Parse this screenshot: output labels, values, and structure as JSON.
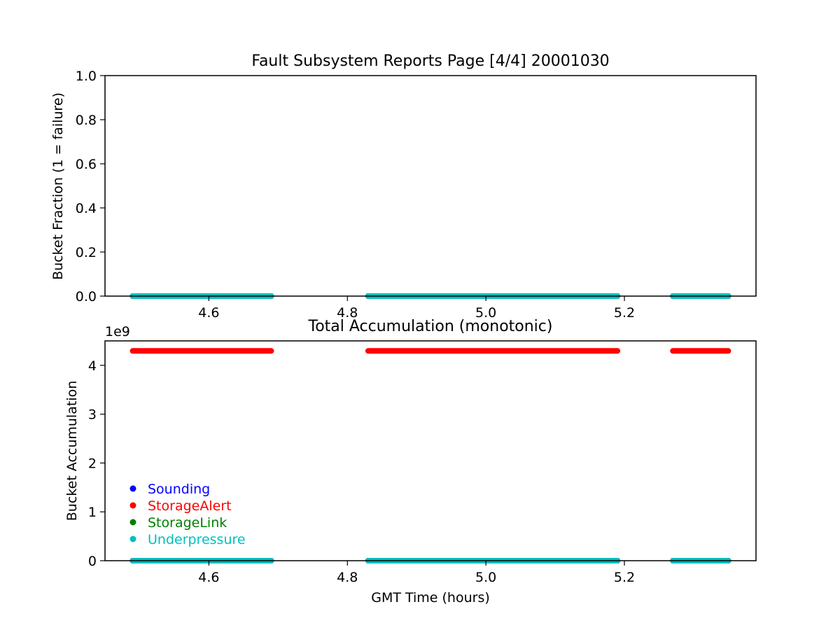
{
  "chart_data": [
    {
      "type": "scatter",
      "title": "Fault Subsystem Reports Page [4/4] 20001030",
      "xlabel": "",
      "ylabel": "Bucket Fraction (1 = failure)",
      "xlim": [
        4.45,
        5.39
      ],
      "ylim": [
        0,
        1
      ],
      "xticks": [
        4.6,
        4.8,
        5.0,
        5.2
      ],
      "xtick_labels": [
        "4.6",
        "4.8",
        "5.0",
        "5.2"
      ],
      "yticks": [
        0,
        0.2,
        0.4,
        0.6,
        0.8,
        1.0
      ],
      "ytick_labels": [
        "0.0",
        "0.2",
        "0.4",
        "0.6",
        "0.8",
        "1.0"
      ],
      "grid": false,
      "segments": [
        [
          4.49,
          4.69
        ],
        [
          4.83,
          5.19
        ],
        [
          5.27,
          5.35
        ]
      ],
      "series": [
        {
          "name": "Sounding",
          "color": "#0000ff",
          "value": 0
        },
        {
          "name": "StorageAlert",
          "color": "#ff0000",
          "value": 0
        },
        {
          "name": "StorageLink",
          "color": "#008000",
          "value": 0
        },
        {
          "name": "Underpressure",
          "color": "#00bfbf",
          "value": 0
        }
      ]
    },
    {
      "type": "scatter",
      "title": "Total Accumulation (monotonic)",
      "xlabel": "GMT Time (hours)",
      "ylabel": "Bucket Accumulation",
      "offset_text": "1e9",
      "xlim": [
        4.45,
        5.39
      ],
      "ylim": [
        0,
        4.5
      ],
      "xticks": [
        4.6,
        4.8,
        5.0,
        5.2
      ],
      "xtick_labels": [
        "4.6",
        "4.8",
        "5.0",
        "5.2"
      ],
      "yticks": [
        0,
        1,
        2,
        3,
        4
      ],
      "ytick_labels": [
        "0",
        "1",
        "2",
        "3",
        "4"
      ],
      "grid": false,
      "legend_position": "lower-left",
      "segments": [
        [
          4.49,
          4.69
        ],
        [
          4.83,
          5.19
        ],
        [
          5.27,
          5.35
        ]
      ],
      "series": [
        {
          "name": "Sounding",
          "color": "#0000ff",
          "value": 0
        },
        {
          "name": "StorageAlert",
          "color": "#ff0000",
          "value": 4.294967295
        },
        {
          "name": "StorageLink",
          "color": "#008000",
          "value": 0
        },
        {
          "name": "Underpressure",
          "color": "#00bfbf",
          "value": 0
        }
      ]
    }
  ]
}
